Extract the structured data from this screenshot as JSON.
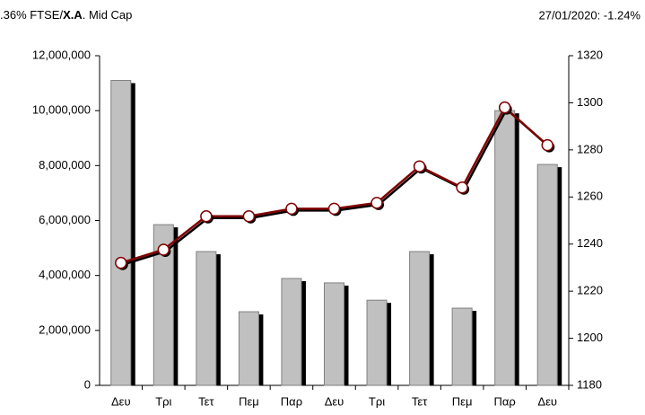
{
  "chart_data": {
    "type": "bar",
    "title_parts": [
      ".36%  FTSE/",
      "Χ.Α",
      ". Mid Cap"
    ],
    "subtitle": "27/01/2020: -1.24%",
    "categories": [
      "Δευ",
      "Τρι",
      "Τετ",
      "Πεμ",
      "Παρ",
      "Δευ",
      "Τρι",
      "Τετ",
      "Πεμ",
      "Παρ",
      "Δευ"
    ],
    "series": [
      {
        "type": "bar",
        "color": "#c0c0c0",
        "values": [
          11100000,
          5850000,
          4870000,
          2680000,
          3890000,
          3730000,
          3100000,
          4870000,
          2810000,
          10000000,
          8040000
        ]
      },
      {
        "type": "line",
        "axis": "y2",
        "color": "#800000",
        "values": [
          1232,
          1237.6,
          1251.8,
          1251.8,
          1255,
          1255,
          1257.5,
          1273,
          1264,
          1298,
          1282
        ]
      }
    ],
    "ylim": [
      0,
      12000000
    ],
    "yticks": [
      0,
      {
        "value": 2000000,
        "label": "2,000,000"
      },
      {
        "value": 4000000,
        "label": "4,000,000"
      },
      {
        "value": 6000000,
        "label": "6,000,000"
      },
      {
        "value": 8000000,
        "label": "8,000,000"
      },
      {
        "value": 10000000,
        "label": "10,000,000"
      },
      {
        "value": 12000000,
        "label": "12,000,000"
      }
    ],
    "y2lim": [
      1180,
      1320
    ],
    "y2ticks": [
      1180,
      1200,
      1220,
      1240,
      1260,
      1280,
      1300,
      1320
    ],
    "grid": false
  }
}
